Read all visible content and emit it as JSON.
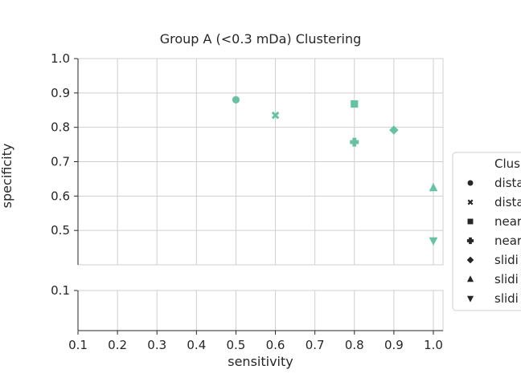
{
  "chart_data": {
    "type": "scatter",
    "title": "Group A (<0.3 mDa) Clustering",
    "xlabel": "sensitivity",
    "ylabel": "specificity",
    "xlim": [
      0.1,
      1.0
    ],
    "ylim_top_panel": [
      0.4,
      1.0
    ],
    "ylim_bottom_panel": [
      0.0,
      0.12
    ],
    "x_ticks": [
      "0.1",
      "0.2",
      "0.3",
      "0.4",
      "0.5",
      "0.6",
      "0.7",
      "0.8",
      "0.9",
      "1.0"
    ],
    "y_ticks_top": [
      "1.0",
      "0.9",
      "0.8",
      "0.7",
      "0.6",
      "0.5"
    ],
    "y_ticks_bottom": [
      "0.1"
    ],
    "grid": true,
    "broken_y_axis": true,
    "marker_color": "#66c2a5",
    "legend": {
      "title": "Clus",
      "placement": "right",
      "entries": [
        {
          "label": "dista",
          "marker": "circle"
        },
        {
          "label": "dista",
          "marker": "x"
        },
        {
          "label": "near",
          "marker": "square"
        },
        {
          "label": "near",
          "marker": "plus"
        },
        {
          "label": "slidi",
          "marker": "diamond"
        },
        {
          "label": "slidi",
          "marker": "triangle-up"
        },
        {
          "label": "slidi",
          "marker": "triangle-down"
        }
      ]
    },
    "points": [
      {
        "x": 0.5,
        "y": 0.88,
        "marker": "circle"
      },
      {
        "x": 0.6,
        "y": 0.835,
        "marker": "x"
      },
      {
        "x": 0.8,
        "y": 0.868,
        "marker": "square"
      },
      {
        "x": 0.8,
        "y": 0.757,
        "marker": "plus"
      },
      {
        "x": 0.9,
        "y": 0.792,
        "marker": "diamond"
      },
      {
        "x": 1.0,
        "y": 0.624,
        "marker": "triangle-up"
      },
      {
        "x": 1.0,
        "y": 0.47,
        "marker": "triangle-down"
      }
    ]
  }
}
